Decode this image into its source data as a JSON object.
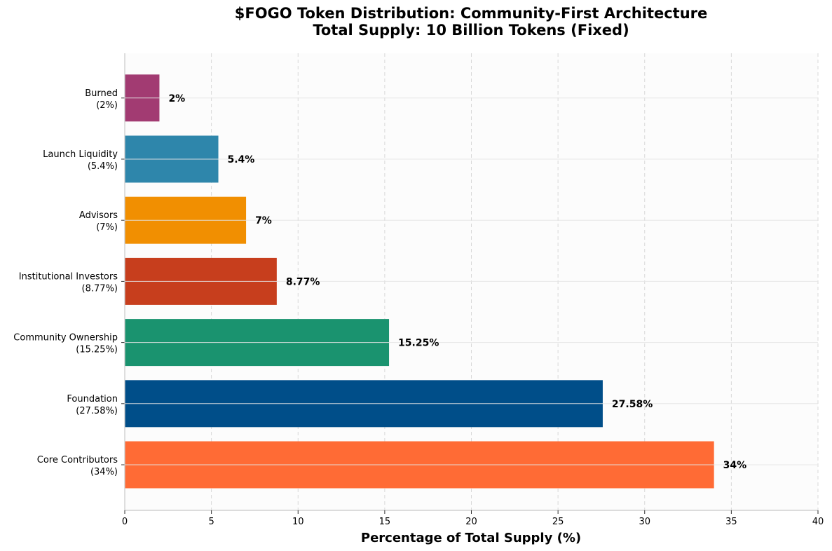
{
  "chart_data": {
    "type": "bar",
    "orientation": "horizontal",
    "title_line1": "$FOGO Token Distribution: Community-First Architecture",
    "title_line2": "Total Supply: 10 Billion Tokens (Fixed)",
    "xlabel": "Percentage of Total Supply (%)",
    "ylabel": "",
    "xlim": [
      0,
      40
    ],
    "xticks": [
      0,
      5,
      10,
      15,
      20,
      25,
      30,
      35,
      40
    ],
    "grid": true,
    "categories": [
      {
        "name": "Core Contributors",
        "pct": "(34%)",
        "value": 34,
        "label": "34%",
        "color": "#ff6b35"
      },
      {
        "name": "Foundation",
        "pct": "(27.58%)",
        "value": 27.58,
        "label": "27.58%",
        "color": "#004e89"
      },
      {
        "name": "Community Ownership",
        "pct": "(15.25%)",
        "value": 15.25,
        "label": "15.25%",
        "color": "#1a936f"
      },
      {
        "name": "Institutional Investors",
        "pct": "(8.77%)",
        "value": 8.77,
        "label": "8.77%",
        "color": "#c73e1d"
      },
      {
        "name": "Advisors",
        "pct": "(7%)",
        "value": 7,
        "label": "7%",
        "color": "#f18f01"
      },
      {
        "name": "Launch Liquidity",
        "pct": "(5.4%)",
        "value": 5.4,
        "label": "5.4%",
        "color": "#2e86ab"
      },
      {
        "name": "Burned",
        "pct": "(2%)",
        "value": 2,
        "label": "2%",
        "color": "#a23b72"
      }
    ]
  }
}
